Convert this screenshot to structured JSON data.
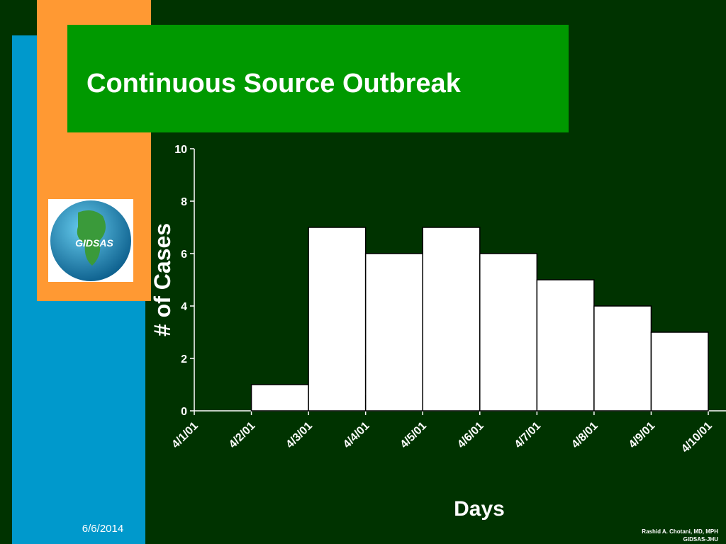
{
  "chart_data": {
    "type": "histogram",
    "title": "Continuous Source Outbreak",
    "bins": [
      "4/1/01",
      "4/2/01",
      "4/3/01",
      "4/4/01",
      "4/5/01",
      "4/6/01",
      "4/7/01",
      "4/8/01",
      "4/9/01",
      "4/10/01"
    ],
    "values": [
      0,
      1,
      7,
      6,
      7,
      6,
      5,
      4,
      3
    ],
    "color": "#ffffff",
    "xlabel": "Days",
    "ylabel": "# of Cases",
    "ylim": [
      0,
      10
    ],
    "yticks": [
      0,
      2,
      4,
      6,
      8,
      10
    ]
  },
  "logo": "GIDSAS",
  "footer": {
    "date": "6/6/2014",
    "author": "Rashid A. Chotani, MD, MPH",
    "org": "GIDSAS-JHU"
  }
}
